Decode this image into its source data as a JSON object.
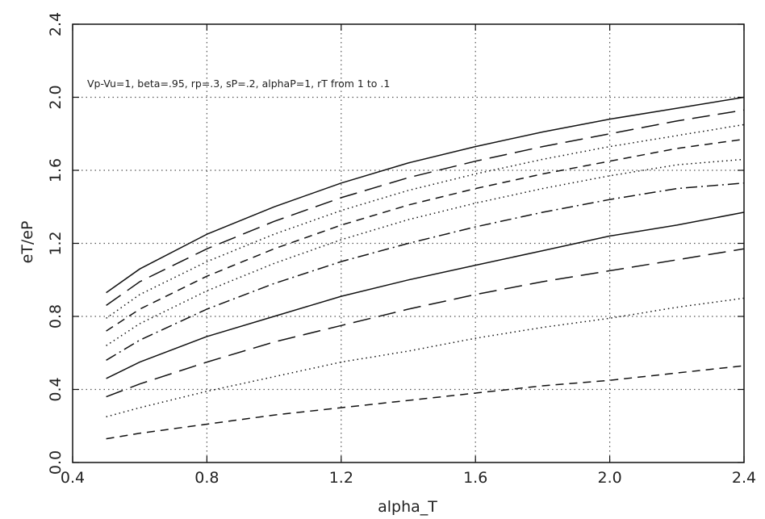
{
  "chart_data": {
    "type": "line",
    "title": "",
    "annotation": "Vp-Vu=1, beta=.95, rp=.3, sP=.2, alphaP=1, rT from 1 to .1",
    "xlabel": "alpha_T",
    "ylabel": "eT/eP",
    "xlim": [
      0.4,
      2.4
    ],
    "ylim": [
      0.0,
      2.4
    ],
    "xticks": [
      "0.4",
      "0.8",
      "1.2",
      "1.6",
      "2.0",
      "2.4"
    ],
    "yticks": [
      "0.0",
      "0.4",
      "0.8",
      "1.2",
      "1.6",
      "2.0",
      "2.4"
    ],
    "grid": true,
    "x": [
      0.5,
      0.6,
      0.8,
      1.0,
      1.2,
      1.4,
      1.6,
      1.8,
      2.0,
      2.2,
      2.4
    ],
    "series": [
      {
        "style": "solid",
        "values": [
          0.93,
          1.06,
          1.25,
          1.4,
          1.53,
          1.64,
          1.73,
          1.81,
          1.88,
          1.94,
          2.0
        ]
      },
      {
        "style": "longdash",
        "values": [
          0.86,
          0.99,
          1.17,
          1.32,
          1.45,
          1.56,
          1.65,
          1.73,
          1.8,
          1.87,
          1.93
        ]
      },
      {
        "style": "dotted",
        "values": [
          0.79,
          0.92,
          1.1,
          1.25,
          1.38,
          1.49,
          1.58,
          1.66,
          1.73,
          1.79,
          1.85
        ]
      },
      {
        "style": "dashed",
        "values": [
          0.72,
          0.84,
          1.02,
          1.17,
          1.3,
          1.41,
          1.5,
          1.58,
          1.65,
          1.72,
          1.77
        ]
      },
      {
        "style": "dotted",
        "values": [
          0.64,
          0.76,
          0.94,
          1.09,
          1.22,
          1.33,
          1.42,
          1.5,
          1.57,
          1.63,
          1.66
        ]
      },
      {
        "style": "dashdot",
        "values": [
          0.56,
          0.67,
          0.84,
          0.98,
          1.1,
          1.2,
          1.29,
          1.37,
          1.44,
          1.5,
          1.53
        ]
      },
      {
        "style": "solid",
        "values": [
          0.46,
          0.55,
          0.69,
          0.8,
          0.91,
          1.0,
          1.08,
          1.16,
          1.24,
          1.3,
          1.37
        ]
      },
      {
        "style": "longdash",
        "values": [
          0.36,
          0.43,
          0.55,
          0.66,
          0.75,
          0.84,
          0.92,
          0.99,
          1.05,
          1.11,
          1.17
        ]
      },
      {
        "style": "dotted",
        "values": [
          0.25,
          0.3,
          0.39,
          0.47,
          0.55,
          0.61,
          0.68,
          0.74,
          0.79,
          0.85,
          0.9
        ]
      },
      {
        "style": "dashed",
        "values": [
          0.13,
          0.16,
          0.21,
          0.26,
          0.3,
          0.34,
          0.38,
          0.42,
          0.45,
          0.49,
          0.53
        ]
      }
    ]
  }
}
